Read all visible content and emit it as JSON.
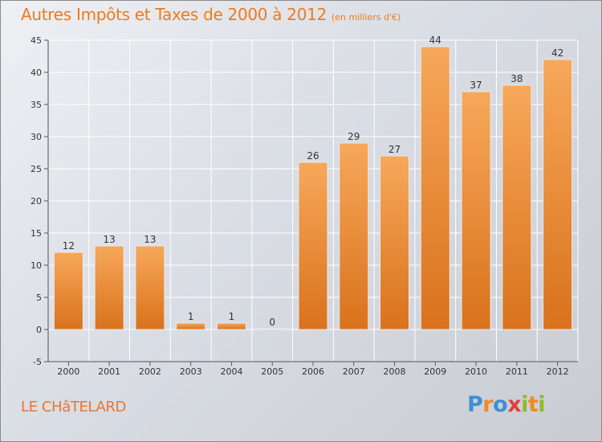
{
  "header": {
    "title": "Autres Impôts et Taxes de 2000 à 2012",
    "unit": "(en milliers d'€)"
  },
  "footer": {
    "place": "LE CHâTELARD",
    "logo": "Proxiti"
  },
  "colors": {
    "bar_top": "#f7a85a",
    "bar_bottom": "#d9721c",
    "title": "#f07a1a",
    "axis": "#555555",
    "grid": "#ffffff"
  },
  "chart_data": {
    "type": "bar",
    "categories": [
      "2000",
      "2001",
      "2002",
      "2003",
      "2004",
      "2005",
      "2006",
      "2007",
      "2008",
      "2009",
      "2010",
      "2011",
      "2012"
    ],
    "values": [
      12,
      13,
      13,
      1,
      1,
      0,
      26,
      29,
      27,
      44,
      37,
      38,
      42
    ],
    "data_labels": [
      "12",
      "13",
      "13",
      "1",
      "1",
      "0",
      "26",
      "29",
      "27",
      "44",
      "37",
      "38",
      "42"
    ],
    "title": "Autres Impôts et Taxes de 2000 à 2012",
    "subtitle": "(en milliers d'€)",
    "xlabel": "",
    "ylabel": "",
    "ylim": [
      -5,
      45
    ],
    "yticks": [
      -5,
      0,
      5,
      10,
      15,
      20,
      25,
      30,
      35,
      40,
      45
    ],
    "grid": true
  }
}
